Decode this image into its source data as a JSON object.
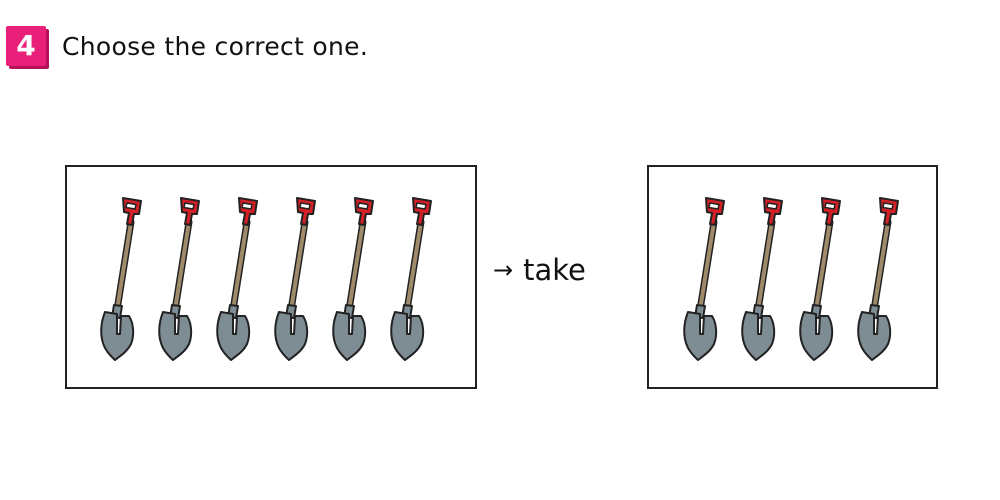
{
  "question": {
    "number": "4",
    "prompt": "Choose the correct one.",
    "badge_color": "#e8207a"
  },
  "transition": {
    "arrow": "→",
    "label": "take",
    "arrow_icon": "right-arrow-icon"
  },
  "panels": [
    {
      "item_icon": "shovel-icon",
      "count": 6
    },
    {
      "item_icon": "shovel-icon",
      "count": 4
    }
  ],
  "colors": {
    "handle_grip": "#d51f26",
    "shaft": "#a08a6c",
    "blade": "#7e8c94",
    "outline": "#222222"
  }
}
